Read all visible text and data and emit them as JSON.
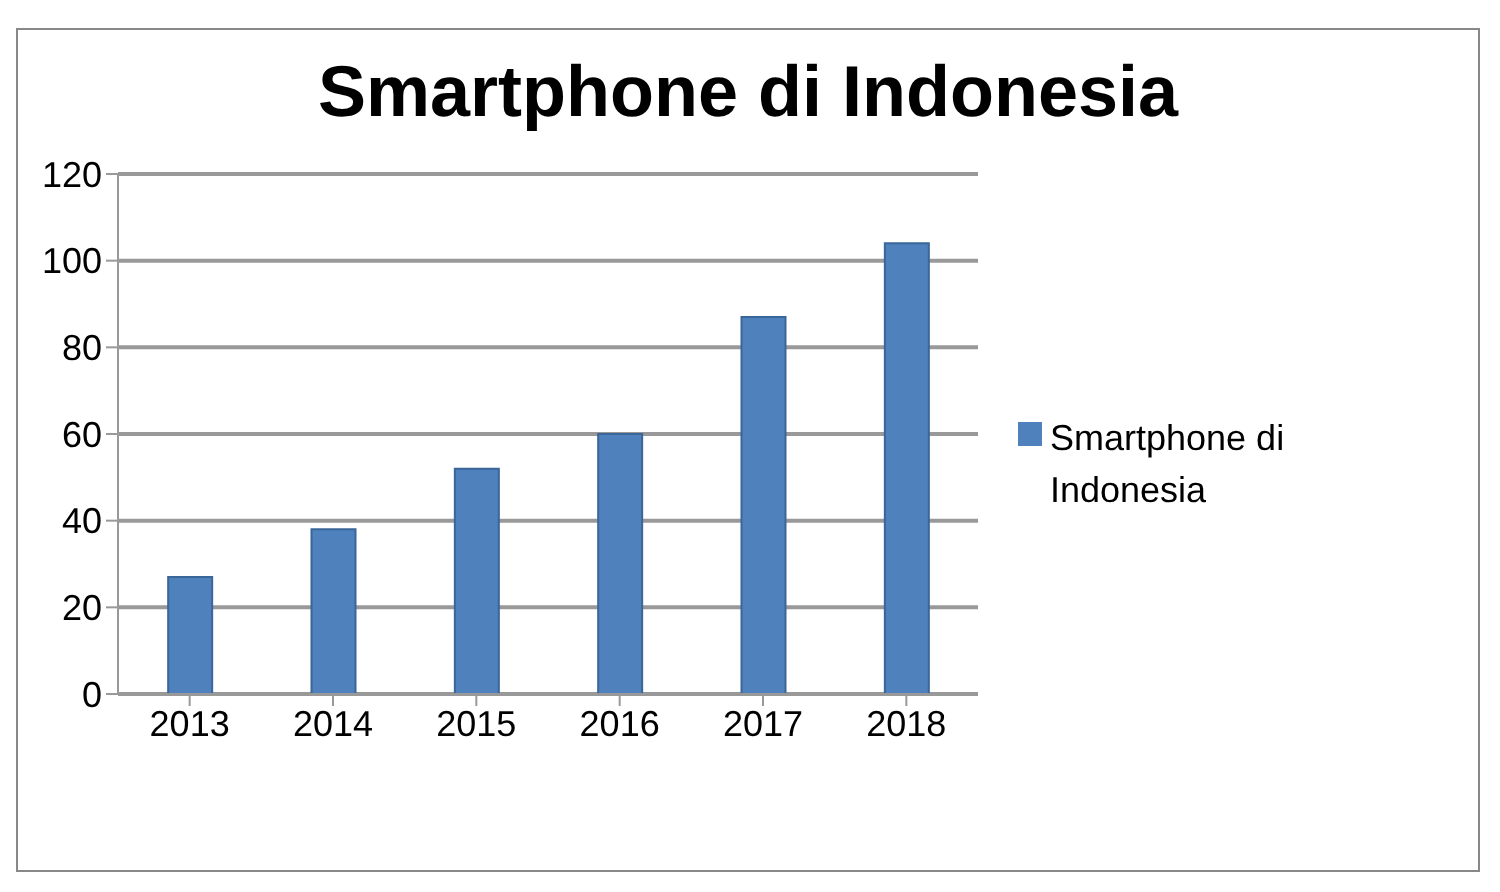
{
  "chart_data": {
    "type": "bar",
    "title": "Smartphone di Indonesia",
    "categories": [
      "2013",
      "2014",
      "2015",
      "2016",
      "2017",
      "2018"
    ],
    "series": [
      {
        "name": "Smartphone di Indonesia",
        "color": "#4f81bd",
        "values": [
          27,
          38,
          52,
          60,
          87,
          104
        ]
      }
    ],
    "ylim": [
      0,
      120
    ],
    "yticks": [
      0,
      20,
      40,
      60,
      80,
      100,
      120
    ],
    "grid": "y",
    "legend": "right"
  }
}
